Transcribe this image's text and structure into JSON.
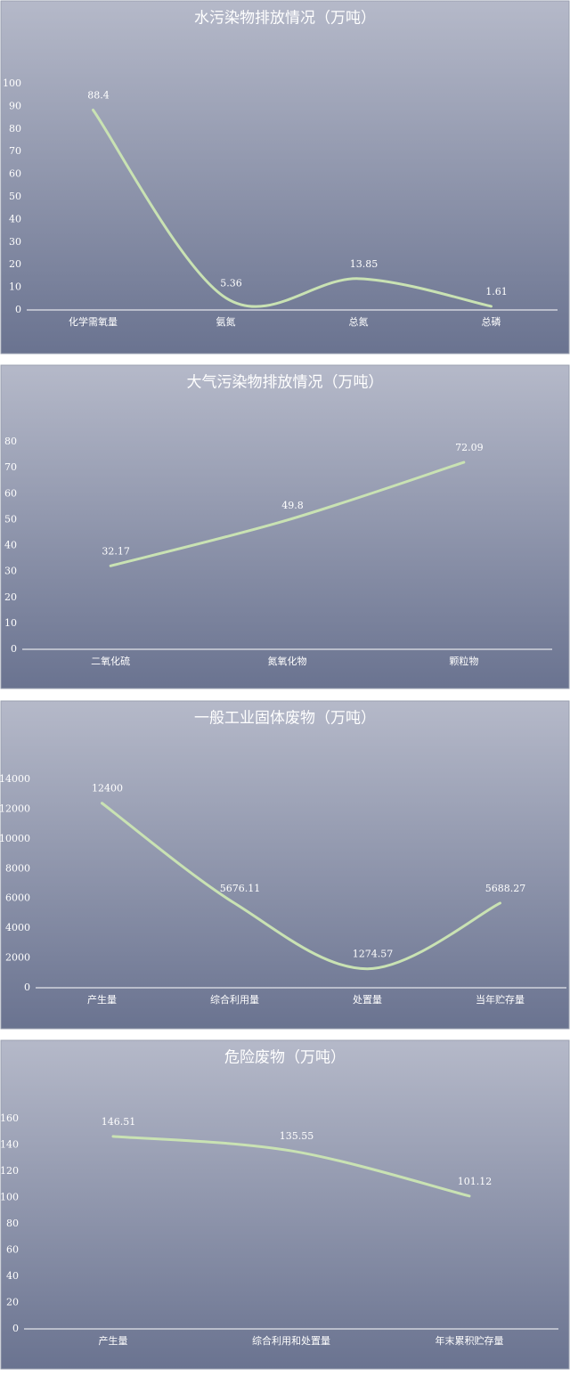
{
  "chart_data": [
    {
      "type": "line",
      "title": "水污染物排放情况（万吨）",
      "categories": [
        "化学需氧量",
        "氨氮",
        "总氮",
        "总磷"
      ],
      "values": [
        88.4,
        5.36,
        13.85,
        1.61
      ],
      "color": "#c9e2b3",
      "ylim": [
        0,
        100
      ],
      "yticks": [
        0,
        10,
        20,
        30,
        40,
        50,
        60,
        70,
        80,
        90,
        100
      ],
      "grid": true
    },
    {
      "type": "line",
      "title": "大气污染物排放情况（万吨）",
      "categories": [
        "二氧化硫",
        "氮氧化物",
        "颗粒物"
      ],
      "values": [
        32.17,
        49.8,
        72.09
      ],
      "color": "#c9e2b3",
      "ylim": [
        0,
        80
      ],
      "yticks": [
        0,
        10,
        20,
        30,
        40,
        50,
        60,
        70,
        80
      ],
      "grid": true
    },
    {
      "type": "line",
      "title": "一般工业固体废物（万吨）",
      "categories": [
        "产生量",
        "综合利用量",
        "处置量",
        "当年贮存量"
      ],
      "values": [
        12400,
        5676.11,
        1274.57,
        5688.27
      ],
      "color": "#c9e2b3",
      "ylim": [
        0,
        14000
      ],
      "yticks": [
        0,
        2000,
        4000,
        6000,
        8000,
        10000,
        12000,
        14000
      ],
      "grid": true
    },
    {
      "type": "line",
      "title": "危险废物（万吨）",
      "categories": [
        "产生量",
        "综合利用和处置量",
        "年末累积贮存量"
      ],
      "values": [
        146.51,
        135.55,
        101.12
      ],
      "color": "#c9e2b3",
      "ylim": [
        0,
        160
      ],
      "yticks": [
        0,
        20,
        40,
        60,
        80,
        100,
        120,
        140,
        160
      ],
      "grid": true
    }
  ]
}
